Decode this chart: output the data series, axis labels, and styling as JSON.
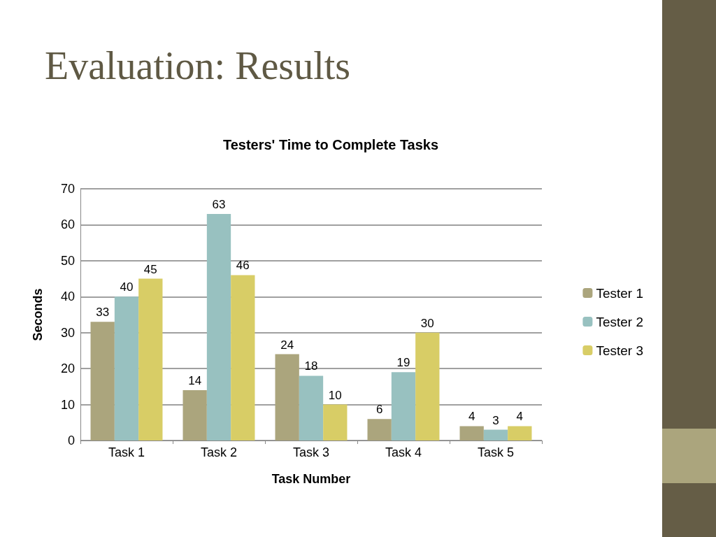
{
  "chart_data": {
    "type": "bar",
    "title": "Evaluation:  Results",
    "subtitle": "Testers' Time to Complete Tasks",
    "xlabel": "Task Number",
    "ylabel": "Seconds",
    "categories": [
      "Task 1",
      "Task 2",
      "Task 3",
      "Task 4",
      "Task 5"
    ],
    "series": [
      {
        "name": "Tester 1",
        "color": "#aba57d",
        "values": [
          33,
          14,
          24,
          6,
          4
        ]
      },
      {
        "name": "Tester 2",
        "color": "#98c1c0",
        "values": [
          40,
          63,
          18,
          19,
          3
        ]
      },
      {
        "name": "Tester 3",
        "color": "#d8cd66",
        "values": [
          45,
          46,
          10,
          30,
          4
        ]
      }
    ],
    "ylim": [
      0,
      70
    ],
    "yticks": [
      0,
      10,
      20,
      30,
      40,
      50,
      60,
      70
    ],
    "grid": "y",
    "legend": "right",
    "data_labels": true
  }
}
